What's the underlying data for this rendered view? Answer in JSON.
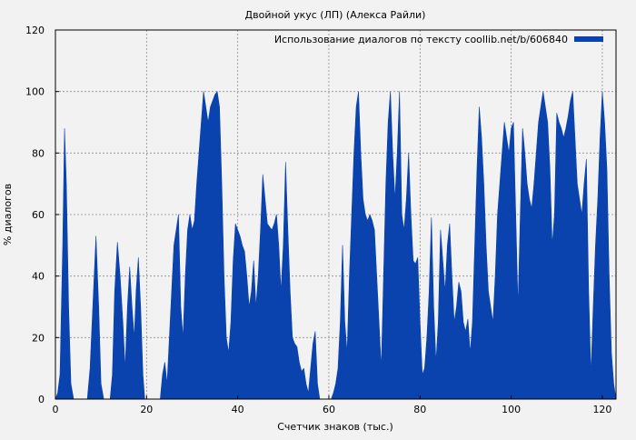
{
  "chart_data": {
    "type": "area",
    "title": "Двойной укус (ЛП) (Алекса Райли)",
    "xlabel": "Счетчик знаков (тыс.)",
    "ylabel": "% диалогов",
    "xlim": [
      0,
      123
    ],
    "ylim": [
      0,
      120
    ],
    "x_ticks": [
      "0",
      "20",
      "40",
      "60",
      "80",
      "100",
      "120"
    ],
    "y_ticks": [
      "0",
      "20",
      "40",
      "60",
      "80",
      "100",
      "120"
    ],
    "grid": true,
    "legend_position": "top-right",
    "series": [
      {
        "name": "Использование диалогов по тексту coollib.net/b/606840",
        "color": "#0a43ad",
        "points": [
          [
            0.0,
            0
          ],
          [
            0.5,
            2
          ],
          [
            1.0,
            8
          ],
          [
            1.6,
            50
          ],
          [
            2.0,
            88
          ],
          [
            2.4,
            70
          ],
          [
            2.9,
            30
          ],
          [
            3.4,
            5
          ],
          [
            4.0,
            0
          ],
          [
            7.0,
            0
          ],
          [
            7.6,
            10
          ],
          [
            8.2,
            30
          ],
          [
            8.9,
            53
          ],
          [
            9.5,
            30
          ],
          [
            10.0,
            5
          ],
          [
            10.6,
            0
          ],
          [
            12.0,
            0
          ],
          [
            12.5,
            8
          ],
          [
            13.0,
            35
          ],
          [
            13.6,
            51
          ],
          [
            14.2,
            40
          ],
          [
            14.8,
            25
          ],
          [
            15.3,
            10
          ],
          [
            15.8,
            30
          ],
          [
            16.3,
            43
          ],
          [
            16.8,
            30
          ],
          [
            17.3,
            20
          ],
          [
            17.7,
            35
          ],
          [
            18.2,
            46
          ],
          [
            18.7,
            30
          ],
          [
            19.2,
            8
          ],
          [
            19.6,
            0
          ],
          [
            23.0,
            0
          ],
          [
            23.5,
            8
          ],
          [
            24.0,
            12
          ],
          [
            24.5,
            5
          ],
          [
            25.0,
            20
          ],
          [
            25.5,
            35
          ],
          [
            26.0,
            50
          ],
          [
            26.5,
            55
          ],
          [
            27.0,
            60
          ],
          [
            27.5,
            30
          ],
          [
            28.0,
            20
          ],
          [
            28.5,
            40
          ],
          [
            29.0,
            55
          ],
          [
            29.5,
            60
          ],
          [
            30.0,
            55
          ],
          [
            30.5,
            58
          ],
          [
            31.0,
            70
          ],
          [
            31.5,
            80
          ],
          [
            32.0,
            90
          ],
          [
            32.5,
            100
          ],
          [
            33.0,
            95
          ],
          [
            33.5,
            90
          ],
          [
            34.0,
            95
          ],
          [
            34.5,
            97
          ],
          [
            35.0,
            99
          ],
          [
            35.5,
            100
          ],
          [
            36.0,
            95
          ],
          [
            36.5,
            70
          ],
          [
            37.0,
            40
          ],
          [
            37.5,
            20
          ],
          [
            38.0,
            15
          ],
          [
            38.5,
            25
          ],
          [
            39.0,
            45
          ],
          [
            39.5,
            57
          ],
          [
            40.0,
            55
          ],
          [
            40.5,
            53
          ],
          [
            41.0,
            50
          ],
          [
            41.5,
            48
          ],
          [
            42.0,
            40
          ],
          [
            42.5,
            30
          ],
          [
            43.0,
            35
          ],
          [
            43.5,
            45
          ],
          [
            44.0,
            30
          ],
          [
            44.5,
            40
          ],
          [
            45.0,
            55
          ],
          [
            45.5,
            73
          ],
          [
            46.0,
            65
          ],
          [
            46.5,
            57
          ],
          [
            47.0,
            56
          ],
          [
            47.5,
            55
          ],
          [
            48.0,
            57
          ],
          [
            48.5,
            60
          ],
          [
            49.0,
            50
          ],
          [
            49.5,
            35
          ],
          [
            50.0,
            50
          ],
          [
            50.5,
            77
          ],
          [
            51.0,
            55
          ],
          [
            51.5,
            35
          ],
          [
            52.0,
            20
          ],
          [
            52.5,
            18
          ],
          [
            53.0,
            17
          ],
          [
            53.5,
            12
          ],
          [
            54.0,
            9
          ],
          [
            54.5,
            10
          ],
          [
            55.0,
            5
          ],
          [
            55.5,
            2
          ],
          [
            56.0,
            10
          ],
          [
            56.5,
            18
          ],
          [
            57.0,
            22
          ],
          [
            57.5,
            5
          ],
          [
            58.0,
            0
          ],
          [
            60.5,
            0
          ],
          [
            61.0,
            2
          ],
          [
            61.5,
            5
          ],
          [
            62.0,
            10
          ],
          [
            62.5,
            25
          ],
          [
            63.0,
            50
          ],
          [
            63.5,
            25
          ],
          [
            64.0,
            15
          ],
          [
            64.5,
            40
          ],
          [
            65.0,
            60
          ],
          [
            65.5,
            80
          ],
          [
            66.0,
            95
          ],
          [
            66.5,
            100
          ],
          [
            67.0,
            80
          ],
          [
            67.5,
            65
          ],
          [
            68.0,
            60
          ],
          [
            68.5,
            58
          ],
          [
            69.0,
            60
          ],
          [
            69.5,
            58
          ],
          [
            70.0,
            55
          ],
          [
            70.5,
            40
          ],
          [
            71.0,
            25
          ],
          [
            71.5,
            10
          ],
          [
            72.0,
            40
          ],
          [
            72.5,
            70
          ],
          [
            73.0,
            90
          ],
          [
            73.5,
            100
          ],
          [
            74.0,
            80
          ],
          [
            74.5,
            65
          ],
          [
            75.0,
            80
          ],
          [
            75.5,
            100
          ],
          [
            76.0,
            60
          ],
          [
            76.5,
            55
          ],
          [
            77.0,
            65
          ],
          [
            77.5,
            80
          ],
          [
            78.0,
            60
          ],
          [
            78.5,
            45
          ],
          [
            79.0,
            44
          ],
          [
            79.5,
            46
          ],
          [
            80.0,
            25
          ],
          [
            80.5,
            8
          ],
          [
            81.0,
            10
          ],
          [
            81.5,
            20
          ],
          [
            82.0,
            35
          ],
          [
            82.5,
            59
          ],
          [
            83.0,
            30
          ],
          [
            83.5,
            12
          ],
          [
            84.0,
            25
          ],
          [
            84.5,
            55
          ],
          [
            85.0,
            45
          ],
          [
            85.5,
            35
          ],
          [
            86.0,
            50
          ],
          [
            86.5,
            57
          ],
          [
            87.0,
            40
          ],
          [
            87.5,
            25
          ],
          [
            88.0,
            30
          ],
          [
            88.5,
            38
          ],
          [
            89.0,
            35
          ],
          [
            89.5,
            25
          ],
          [
            90.0,
            22
          ],
          [
            90.5,
            26
          ],
          [
            91.0,
            15
          ],
          [
            91.5,
            25
          ],
          [
            92.0,
            50
          ],
          [
            92.5,
            75
          ],
          [
            93.0,
            95
          ],
          [
            93.5,
            85
          ],
          [
            94.0,
            70
          ],
          [
            94.5,
            50
          ],
          [
            95.0,
            35
          ],
          [
            95.5,
            30
          ],
          [
            96.0,
            25
          ],
          [
            96.5,
            40
          ],
          [
            97.0,
            60
          ],
          [
            97.5,
            70
          ],
          [
            98.0,
            80
          ],
          [
            98.5,
            90
          ],
          [
            99.0,
            85
          ],
          [
            99.5,
            80
          ],
          [
            100.0,
            88
          ],
          [
            100.5,
            90
          ],
          [
            101.0,
            60
          ],
          [
            101.5,
            30
          ],
          [
            102.0,
            60
          ],
          [
            102.5,
            88
          ],
          [
            103.0,
            80
          ],
          [
            103.5,
            70
          ],
          [
            104.0,
            65
          ],
          [
            104.5,
            62
          ],
          [
            105.0,
            70
          ],
          [
            105.5,
            80
          ],
          [
            106.0,
            90
          ],
          [
            106.5,
            95
          ],
          [
            107.0,
            100
          ],
          [
            107.5,
            95
          ],
          [
            108.0,
            90
          ],
          [
            108.5,
            75
          ],
          [
            109.0,
            50
          ],
          [
            109.5,
            60
          ],
          [
            110.0,
            93
          ],
          [
            110.5,
            90
          ],
          [
            111.0,
            88
          ],
          [
            111.5,
            85
          ],
          [
            112.0,
            88
          ],
          [
            112.5,
            92
          ],
          [
            113.0,
            97
          ],
          [
            113.5,
            100
          ],
          [
            114.0,
            85
          ],
          [
            114.5,
            70
          ],
          [
            115.0,
            65
          ],
          [
            115.5,
            60
          ],
          [
            116.0,
            70
          ],
          [
            116.5,
            78
          ],
          [
            117.0,
            35
          ],
          [
            117.5,
            8
          ],
          [
            118.0,
            30
          ],
          [
            118.5,
            50
          ],
          [
            119.0,
            65
          ],
          [
            119.5,
            85
          ],
          [
            120.0,
            100
          ],
          [
            120.5,
            90
          ],
          [
            121.0,
            75
          ],
          [
            121.5,
            40
          ],
          [
            122.0,
            15
          ],
          [
            122.5,
            5
          ],
          [
            123.0,
            0
          ]
        ]
      }
    ]
  }
}
